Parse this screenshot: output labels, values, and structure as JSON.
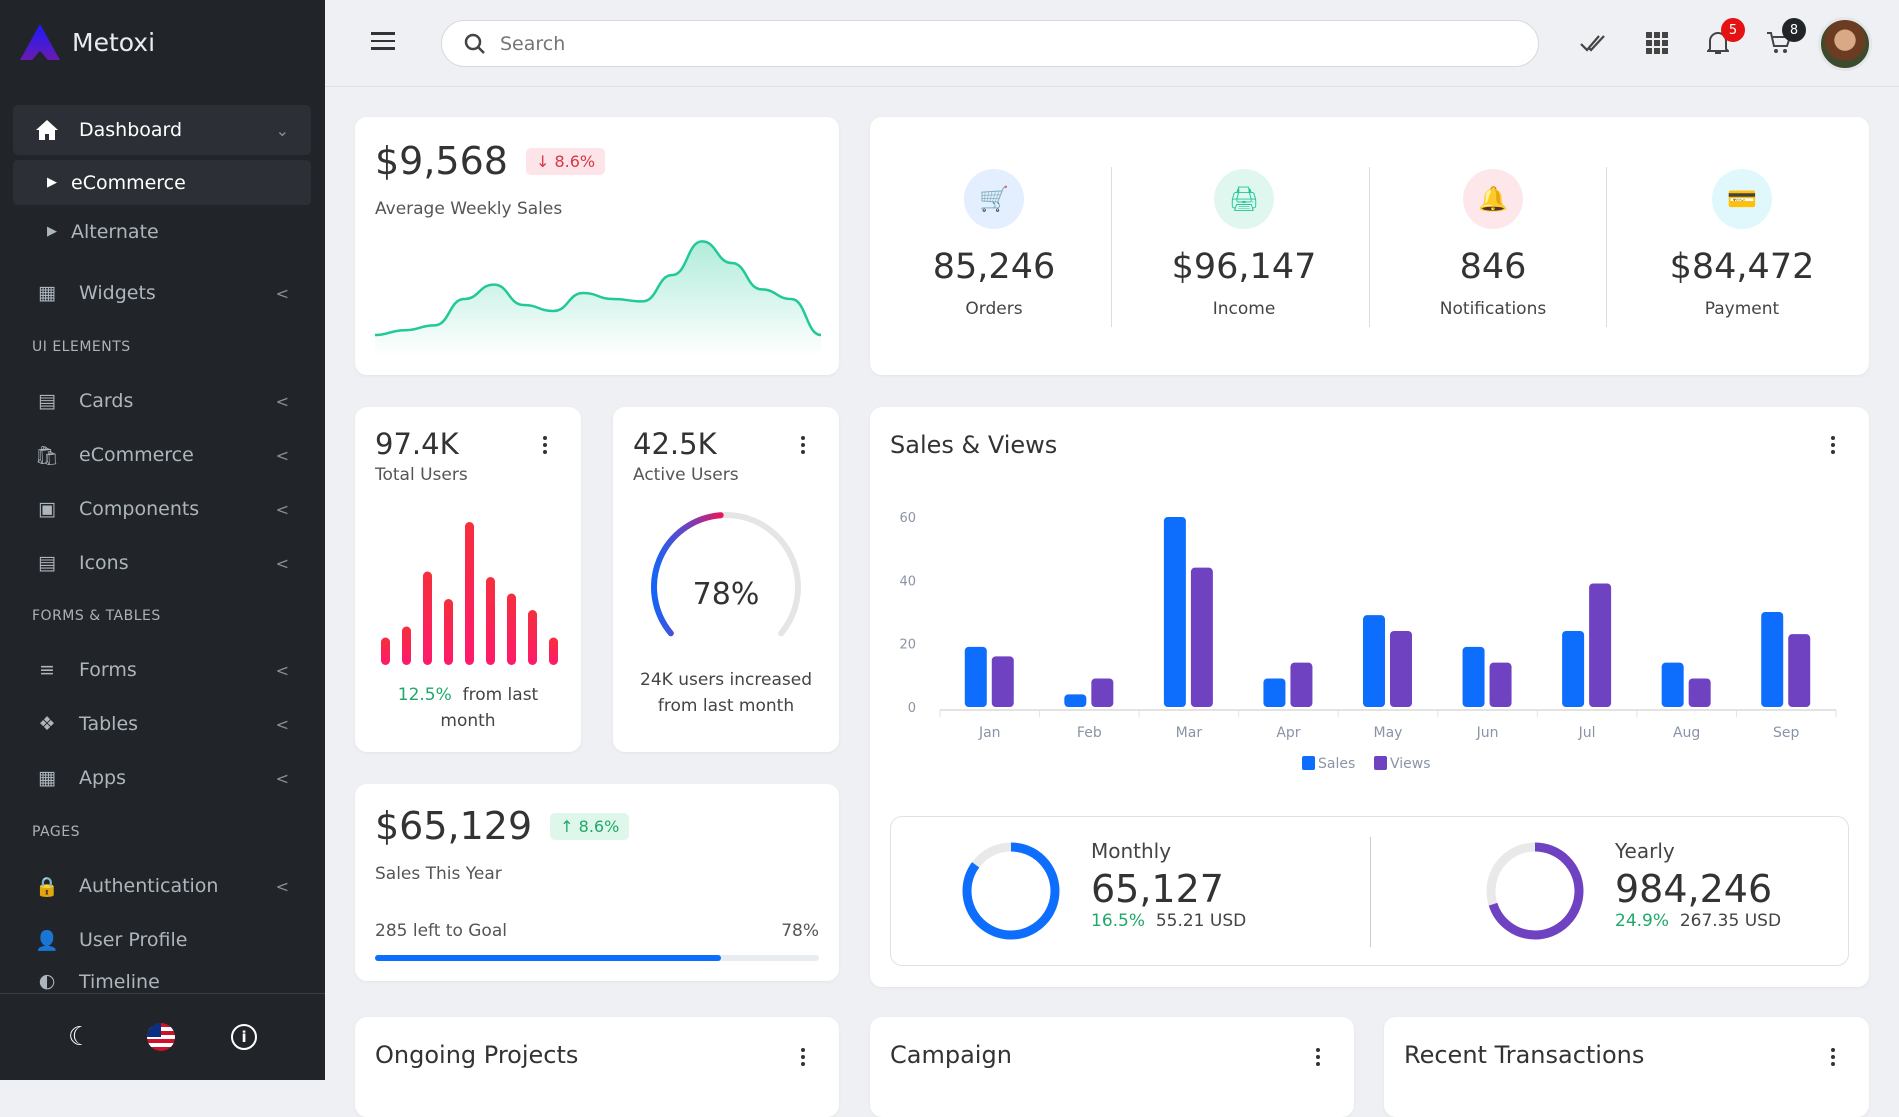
{
  "brand": {
    "name": "Metoxi"
  },
  "sidebar": {
    "items": [
      {
        "label": "Dashboard",
        "icon": "home-icon"
      },
      {
        "label": "eCommerce"
      },
      {
        "label": "Alternate"
      },
      {
        "label": "Widgets",
        "icon": "widgets-icon"
      },
      {
        "label": "Cards",
        "icon": "cards-icon"
      },
      {
        "label": "eCommerce",
        "icon": "bag-icon"
      },
      {
        "label": "Components",
        "icon": "components-icon"
      },
      {
        "label": "Icons",
        "icon": "icons-icon"
      },
      {
        "label": "Forms",
        "icon": "forms-icon"
      },
      {
        "label": "Tables",
        "icon": "tables-icon"
      },
      {
        "label": "Apps",
        "icon": "apps-icon"
      },
      {
        "label": "Authentication",
        "icon": "lock-icon"
      },
      {
        "label": "User Profile",
        "icon": "user-icon"
      },
      {
        "label": "Timeline",
        "icon": "timeline-icon"
      }
    ],
    "sections": [
      "UI ELEMENTS",
      "FORMS & TABLES",
      "PAGES"
    ]
  },
  "header": {
    "search_placeholder": "Search",
    "notifications_count": "5",
    "cart_count": "8"
  },
  "weekly": {
    "value": "$9,568",
    "change": "8.6%",
    "label": "Average Weekly Sales",
    "spark": [
      10,
      14,
      18,
      40,
      52,
      35,
      30,
      45,
      40,
      38,
      60,
      88,
      70,
      48,
      40,
      10
    ]
  },
  "stats": [
    {
      "value": "85,246",
      "label": "Orders",
      "color": "#0d6efd",
      "bg": "#e3eefe"
    },
    {
      "value": "$96,147",
      "label": "Income",
      "color": "#20c997",
      "bg": "#e0f7ef"
    },
    {
      "value": "846",
      "label": "Notifications",
      "color": "#dc3545",
      "bg": "#fde7ea"
    },
    {
      "value": "$84,472",
      "label": "Payment",
      "color": "#0dcaf0",
      "bg": "#e0f8fc"
    }
  ],
  "total_users": {
    "value": "97.4K",
    "label": "Total Users",
    "change": "12.5%",
    "note": "from last month",
    "bars": [
      5,
      7,
      17,
      12,
      26,
      16,
      13,
      10,
      5
    ]
  },
  "active_users": {
    "value": "42.5K",
    "label": "Active Users",
    "percent": 78,
    "percent_label": "78%",
    "note": "24K users increased from last month"
  },
  "sales_year": {
    "value": "$65,129",
    "change": "8.6%",
    "label": "Sales This Year",
    "goal_text": "285 left to Goal",
    "goal_percent_label": "78%",
    "progress": 0.78
  },
  "sales_views": {
    "title": "Sales & Views",
    "monthly": {
      "title": "Monthly",
      "value": "65,127",
      "change": "16.5%",
      "usd": "55.21 USD",
      "ring": 0.85
    },
    "yearly": {
      "title": "Yearly",
      "value": "984,246",
      "change": "24.9%",
      "usd": "267.35 USD",
      "ring": 0.7
    }
  },
  "chart_data": {
    "type": "bar",
    "title": "Sales & Views",
    "categories": [
      "Jan",
      "Feb",
      "Mar",
      "Apr",
      "May",
      "Jun",
      "Jul",
      "Aug",
      "Sep"
    ],
    "series": [
      {
        "name": "Sales",
        "color": "#0d6efd",
        "values": [
          19,
          4,
          60,
          9,
          29,
          19,
          24,
          14,
          30
        ]
      },
      {
        "name": "Views",
        "color": "#6f42c1",
        "values": [
          16,
          9,
          44,
          14,
          24,
          14,
          39,
          9,
          23
        ]
      }
    ],
    "yticks": [
      "0",
      "20",
      "40",
      "60"
    ],
    "ylim": [
      0,
      60
    ],
    "legend": "bottom"
  },
  "bottom_cards": [
    "Ongoing Projects",
    "Campaign",
    "Recent Transactions"
  ]
}
